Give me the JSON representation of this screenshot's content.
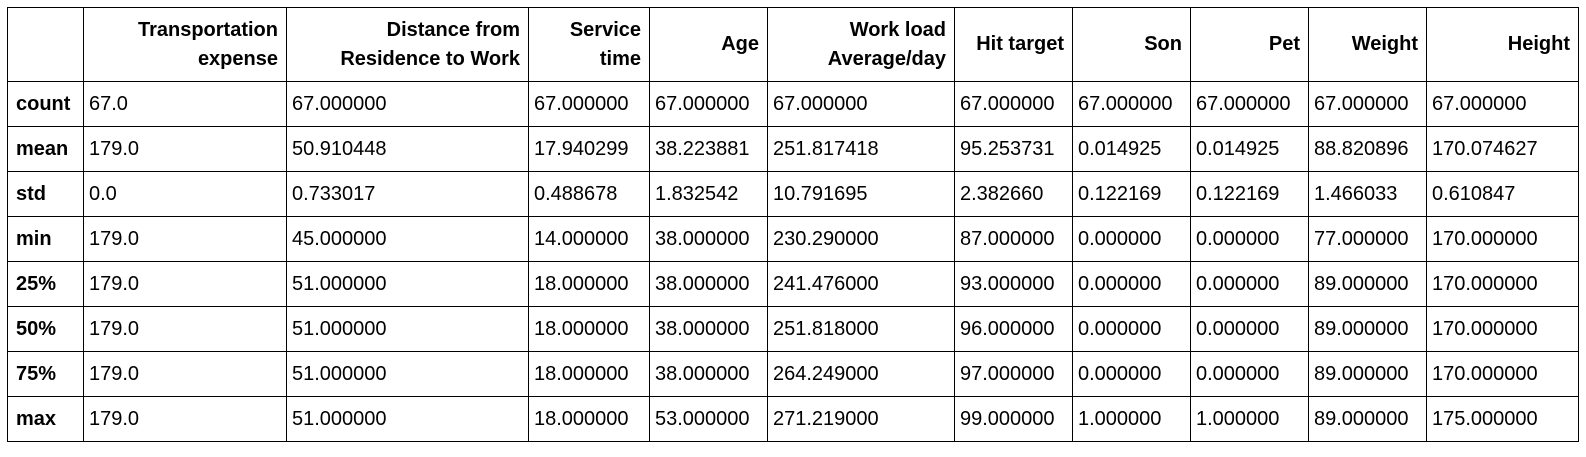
{
  "table": {
    "index_header": "",
    "columns": [
      {
        "key": "transportation-expense",
        "line1": "Transportation",
        "line2": "expense"
      },
      {
        "key": "distance-from-residence-to-work",
        "line1": "Distance from",
        "line2": "Residence to Work"
      },
      {
        "key": "service-time",
        "line1": "Service",
        "line2": "time"
      },
      {
        "key": "age",
        "line1": "Age",
        "line2": ""
      },
      {
        "key": "work-load-average-day",
        "line1": "Work load",
        "line2": "Average/day"
      },
      {
        "key": "hit-target",
        "line1": "Hit target",
        "line2": ""
      },
      {
        "key": "son",
        "line1": "Son",
        "line2": ""
      },
      {
        "key": "pet",
        "line1": "Pet",
        "line2": ""
      },
      {
        "key": "weight",
        "line1": "Weight",
        "line2": ""
      },
      {
        "key": "height",
        "line1": "Height",
        "line2": ""
      }
    ],
    "rows": [
      {
        "label": "count",
        "values": [
          "67.0",
          "67.000000",
          "67.000000",
          "67.000000",
          "67.000000",
          "67.000000",
          "67.000000",
          "67.000000",
          "67.000000",
          "67.000000"
        ]
      },
      {
        "label": "mean",
        "values": [
          "179.0",
          "50.910448",
          "17.940299",
          "38.223881",
          "251.817418",
          "95.253731",
          "0.014925",
          "0.014925",
          "88.820896",
          "170.074627"
        ]
      },
      {
        "label": "std",
        "values": [
          "0.0",
          "0.733017",
          "0.488678",
          "1.832542",
          "10.791695",
          "2.382660",
          "0.122169",
          "0.122169",
          "1.466033",
          "0.610847"
        ]
      },
      {
        "label": "min",
        "values": [
          "179.0",
          "45.000000",
          "14.000000",
          "38.000000",
          "230.290000",
          "87.000000",
          "0.000000",
          "0.000000",
          "77.000000",
          "170.000000"
        ]
      },
      {
        "label": "25%",
        "values": [
          "179.0",
          "51.000000",
          "18.000000",
          "38.000000",
          "241.476000",
          "93.000000",
          "0.000000",
          "0.000000",
          "89.000000",
          "170.000000"
        ]
      },
      {
        "label": "50%",
        "values": [
          "179.0",
          "51.000000",
          "18.000000",
          "38.000000",
          "251.818000",
          "96.000000",
          "0.000000",
          "0.000000",
          "89.000000",
          "170.000000"
        ]
      },
      {
        "label": "75%",
        "values": [
          "179.0",
          "51.000000",
          "18.000000",
          "38.000000",
          "264.249000",
          "97.000000",
          "0.000000",
          "0.000000",
          "89.000000",
          "170.000000"
        ]
      },
      {
        "label": "max",
        "values": [
          "179.0",
          "51.000000",
          "18.000000",
          "53.000000",
          "271.219000",
          "99.000000",
          "1.000000",
          "1.000000",
          "89.000000",
          "175.000000"
        ]
      }
    ]
  }
}
